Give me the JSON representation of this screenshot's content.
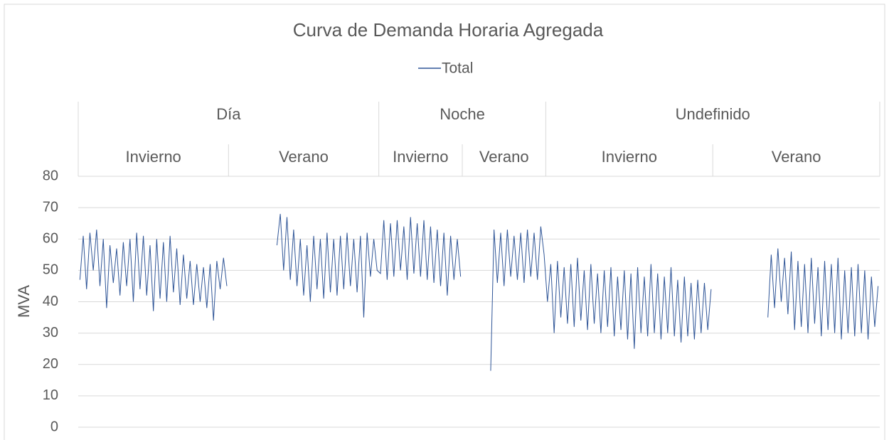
{
  "chart_data": {
    "type": "line",
    "title": "Curva de Demanda Horaria Agregada",
    "y_label": "MVA",
    "series": [
      {
        "name": "Total",
        "color": "#2f5597"
      }
    ],
    "ylim": [
      0,
      80
    ],
    "yticks": [
      0,
      10,
      20,
      30,
      40,
      50,
      60,
      70,
      80
    ],
    "grid": true,
    "legend": "top",
    "groups": [
      {
        "label": "Día",
        "subgroups": [
          {
            "label": "Invierno",
            "values": [
              47,
              61,
              44,
              62,
              50,
              63,
              45,
              60,
              38,
              58,
              46,
              57,
              42,
              59,
              45,
              60,
              40,
              62,
              44,
              61,
              42,
              58,
              37,
              60,
              41,
              59,
              40,
              61,
              43,
              57,
              39,
              55,
              41,
              53,
              39,
              52,
              40,
              51,
              38,
              52,
              34,
              53,
              44,
              54,
              45
            ]
          },
          {
            "label": "Verano",
            "values": [
              null,
              null,
              null,
              null,
              null,
              null,
              null,
              null,
              null,
              null,
              null,
              null,
              null,
              null,
              58,
              68,
              50,
              67,
              47,
              63,
              45,
              60,
              42,
              58,
              40,
              61,
              44,
              60,
              41,
              62,
              43,
              60,
              42,
              61,
              44,
              62,
              45,
              60,
              43,
              61,
              35,
              62,
              48,
              60,
              50
            ]
          }
        ]
      },
      {
        "label": "Noche",
        "subgroups": [
          {
            "label": "Invierno",
            "values": [
              49,
              66,
              47,
              65,
              48,
              66,
              50,
              64,
              47,
              67,
              49,
              65,
              48,
              66,
              47,
              64,
              46,
              63,
              45,
              62,
              42,
              61,
              47,
              60,
              48
            ]
          },
          {
            "label": "Verano",
            "values": [
              null,
              null,
              null,
              null,
              null,
              null,
              null,
              null,
              18,
              63,
              46,
              62,
              45,
              63,
              48,
              61,
              47,
              62,
              46,
              63,
              48,
              62,
              47,
              64,
              55
            ]
          }
        ]
      },
      {
        "label": "Undefinido",
        "subgroups": [
          {
            "label": "Invierno",
            "values": [
              40,
              52,
              30,
              53,
              35,
              51,
              33,
              52,
              32,
              54,
              34,
              50,
              31,
              52,
              33,
              49,
              30,
              50,
              32,
              51,
              29,
              48,
              31,
              50,
              28,
              49,
              25,
              51,
              30,
              48,
              29,
              52,
              30,
              49,
              28,
              48,
              30,
              51,
              29,
              47,
              27,
              48,
              29,
              46,
              28,
              47,
              30,
              46,
              31,
              44
            ]
          },
          {
            "label": "Verano",
            "values": [
              null,
              null,
              null,
              null,
              null,
              null,
              null,
              null,
              null,
              null,
              null,
              null,
              null,
              null,
              null,
              null,
              35,
              55,
              38,
              57,
              40,
              54,
              36,
              56,
              31,
              53,
              32,
              52,
              30,
              54,
              33,
              51,
              29,
              53,
              31,
              52,
              30,
              54,
              28,
              50,
              30,
              51,
              29,
              52,
              30,
              50,
              28,
              48,
              32,
              45
            ]
          }
        ]
      }
    ]
  }
}
